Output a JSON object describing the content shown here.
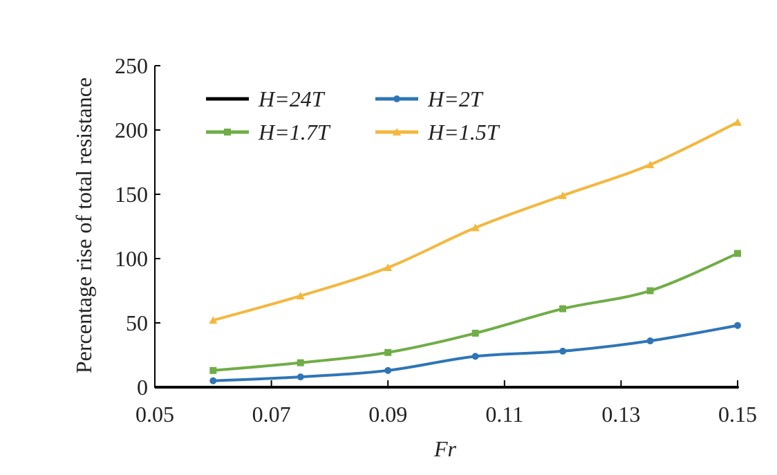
{
  "chart_data": {
    "type": "line",
    "title": "",
    "xlabel": "Fr",
    "ylabel": "Percentage rise of total resistance",
    "xlim": [
      0.05,
      0.15
    ],
    "ylim": [
      0,
      250
    ],
    "xticks": [
      "0.05",
      "0.07",
      "0.09",
      "0.11",
      "0.13",
      "0.15"
    ],
    "yticks": [
      "0",
      "50",
      "100",
      "150",
      "200",
      "250"
    ],
    "grid": false,
    "legend_position": "top-left",
    "x": [
      0.06,
      0.075,
      0.09,
      0.105,
      0.12,
      0.135,
      0.15
    ],
    "series": [
      {
        "name": "H = 24T",
        "legend_text": "H=24T",
        "color": "#000000",
        "marker": "none",
        "values": [
          0,
          0,
          0,
          0,
          0,
          0,
          0
        ]
      },
      {
        "name": "H = 2T",
        "legend_text": "H=2T",
        "color": "#2e75b6",
        "marker": "circle",
        "values": [
          5,
          8,
          13,
          24,
          28,
          36,
          48
        ]
      },
      {
        "name": "H = 1.7T",
        "legend_text": "H=1.7T",
        "color": "#70ad47",
        "marker": "square",
        "values": [
          13,
          19,
          27,
          42,
          61,
          75,
          104
        ]
      },
      {
        "name": "H = 1.5T",
        "legend_text": "H=1.5T",
        "color": "#f4b73e",
        "marker": "triangle",
        "values": [
          52,
          71,
          93,
          124,
          149,
          173,
          206
        ]
      }
    ]
  }
}
